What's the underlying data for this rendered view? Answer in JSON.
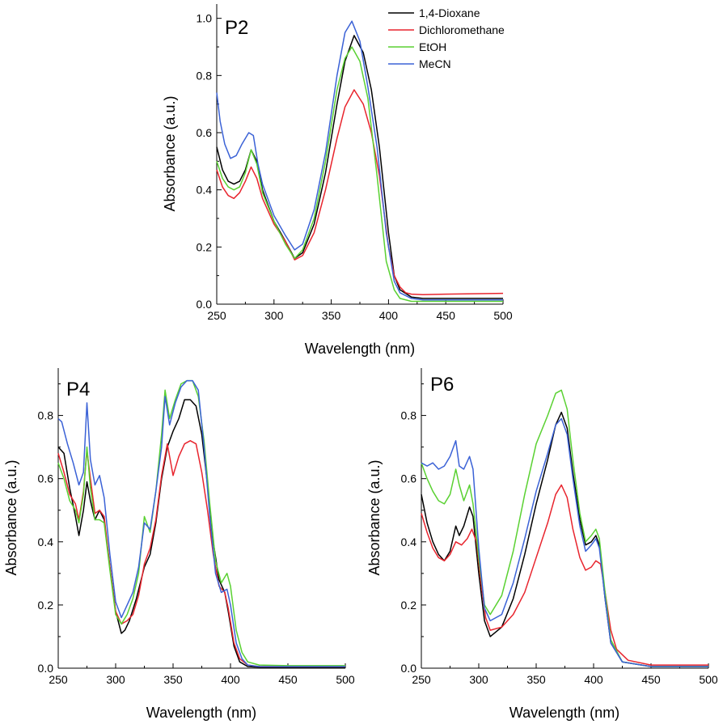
{
  "chart_data": [
    {
      "type": "line",
      "title": "P2",
      "xlabel": "Wavelength (nm)",
      "ylabel": "Absorbance (a.u.)",
      "xlim": [
        250,
        500
      ],
      "ylim": [
        0,
        1.05
      ],
      "xticks": [
        250,
        300,
        350,
        400,
        450,
        500
      ],
      "yticks": [
        0.0,
        0.2,
        0.4,
        0.6,
        0.8,
        1.0
      ],
      "xtick_labels": [
        "250",
        "300",
        "350",
        "400",
        "450",
        "500"
      ],
      "ytick_labels": [
        "0.0",
        "0.2",
        "0.4",
        "0.6",
        "0.8",
        "1.0"
      ],
      "legend": [
        "1,4-Dioxane",
        "Dichloromethane",
        "EtOH",
        "MeCN"
      ],
      "series": [
        {
          "name": "1,4-Dioxane",
          "color": "#000000",
          "x": [
            250,
            255,
            260,
            265,
            270,
            275,
            280,
            285,
            290,
            300,
            310,
            318,
            325,
            335,
            345,
            355,
            362,
            370,
            378,
            385,
            392,
            400,
            405,
            410,
            420,
            430,
            450,
            500
          ],
          "y": [
            0.55,
            0.47,
            0.43,
            0.42,
            0.43,
            0.47,
            0.54,
            0.5,
            0.4,
            0.29,
            0.22,
            0.16,
            0.18,
            0.28,
            0.46,
            0.7,
            0.85,
            0.94,
            0.88,
            0.75,
            0.55,
            0.25,
            0.1,
            0.05,
            0.025,
            0.02,
            0.02,
            0.02
          ]
        },
        {
          "name": "Dichloromethane",
          "color": "#e8242d",
          "x": [
            250,
            255,
            260,
            265,
            270,
            275,
            280,
            285,
            290,
            300,
            310,
            318,
            325,
            335,
            345,
            355,
            362,
            370,
            378,
            385,
            392,
            400,
            405,
            410,
            415,
            420,
            430,
            450,
            500
          ],
          "y": [
            0.47,
            0.41,
            0.38,
            0.37,
            0.39,
            0.43,
            0.48,
            0.44,
            0.37,
            0.28,
            0.22,
            0.155,
            0.17,
            0.25,
            0.4,
            0.58,
            0.69,
            0.75,
            0.7,
            0.6,
            0.45,
            0.2,
            0.1,
            0.06,
            0.04,
            0.035,
            0.033,
            0.035,
            0.038
          ]
        },
        {
          "name": "EtOH",
          "color": "#5ad132",
          "x": [
            250,
            255,
            260,
            265,
            270,
            275,
            280,
            285,
            290,
            300,
            310,
            318,
            325,
            335,
            345,
            355,
            362,
            368,
            375,
            382,
            390,
            398,
            405,
            410,
            420,
            430,
            450,
            500
          ],
          "y": [
            0.5,
            0.44,
            0.41,
            0.4,
            0.41,
            0.46,
            0.54,
            0.49,
            0.39,
            0.29,
            0.21,
            0.16,
            0.19,
            0.3,
            0.5,
            0.75,
            0.86,
            0.9,
            0.85,
            0.72,
            0.45,
            0.15,
            0.05,
            0.02,
            0.01,
            0.01,
            0.01,
            0.01
          ]
        },
        {
          "name": "MeCN",
          "color": "#3b62d6",
          "x": [
            250,
            253,
            257,
            262,
            267,
            272,
            278,
            282,
            286,
            290,
            300,
            310,
            318,
            325,
            335,
            345,
            355,
            362,
            368,
            375,
            382,
            390,
            398,
            405,
            410,
            420,
            430,
            450,
            500
          ],
          "y": [
            0.74,
            0.64,
            0.56,
            0.51,
            0.52,
            0.56,
            0.6,
            0.59,
            0.49,
            0.42,
            0.31,
            0.24,
            0.19,
            0.21,
            0.33,
            0.53,
            0.8,
            0.95,
            0.99,
            0.92,
            0.76,
            0.55,
            0.25,
            0.08,
            0.04,
            0.02,
            0.015,
            0.015,
            0.015
          ]
        }
      ]
    },
    {
      "type": "line",
      "title": "P4",
      "xlabel": "Wavelength (nm)",
      "ylabel": "Absorbance (a.u.)",
      "xlim": [
        250,
        500
      ],
      "ylim": [
        0,
        0.95
      ],
      "xticks": [
        250,
        300,
        350,
        400,
        450,
        500
      ],
      "yticks": [
        0.0,
        0.2,
        0.4,
        0.6,
        0.8
      ],
      "xtick_labels": [
        "250",
        "300",
        "350",
        "400",
        "450",
        "500"
      ],
      "ytick_labels": [
        "0.0",
        "0.2",
        "0.4",
        "0.6",
        "0.8"
      ],
      "series": [
        {
          "name": "1,4-Dioxane",
          "color": "#000000",
          "x": [
            250,
            255,
            260,
            265,
            268,
            272,
            275,
            278,
            282,
            286,
            290,
            295,
            300,
            305,
            308,
            312,
            318,
            325,
            330,
            335,
            340,
            345,
            350,
            355,
            360,
            365,
            370,
            375,
            380,
            385,
            390,
            395,
            398,
            403,
            408,
            415,
            425,
            450,
            500
          ],
          "y": [
            0.7,
            0.68,
            0.57,
            0.48,
            0.42,
            0.5,
            0.59,
            0.53,
            0.47,
            0.5,
            0.47,
            0.32,
            0.18,
            0.11,
            0.12,
            0.15,
            0.22,
            0.32,
            0.36,
            0.46,
            0.6,
            0.7,
            0.75,
            0.79,
            0.85,
            0.85,
            0.83,
            0.74,
            0.58,
            0.4,
            0.28,
            0.24,
            0.18,
            0.07,
            0.02,
            0.005,
            0.003,
            0.003,
            0.003
          ]
        },
        {
          "name": "Dichloromethane",
          "color": "#e8242d",
          "x": [
            250,
            255,
            260,
            265,
            268,
            272,
            275,
            278,
            282,
            286,
            290,
            295,
            300,
            305,
            310,
            315,
            320,
            325,
            330,
            335,
            340,
            345,
            350,
            355,
            360,
            365,
            370,
            375,
            380,
            385,
            390,
            395,
            398,
            403,
            408,
            415,
            425,
            450,
            500
          ],
          "y": [
            0.68,
            0.62,
            0.55,
            0.52,
            0.47,
            0.56,
            0.69,
            0.6,
            0.49,
            0.5,
            0.48,
            0.32,
            0.18,
            0.14,
            0.15,
            0.17,
            0.23,
            0.33,
            0.38,
            0.47,
            0.61,
            0.71,
            0.61,
            0.67,
            0.71,
            0.72,
            0.71,
            0.62,
            0.5,
            0.36,
            0.26,
            0.24,
            0.19,
            0.08,
            0.03,
            0.01,
            0.005,
            0.005,
            0.005
          ]
        },
        {
          "name": "EtOH",
          "color": "#5ad132",
          "x": [
            250,
            255,
            260,
            265,
            268,
            272,
            275,
            278,
            282,
            286,
            290,
            295,
            300,
            305,
            310,
            315,
            320,
            325,
            330,
            335,
            340,
            343,
            347,
            352,
            357,
            362,
            367,
            372,
            377,
            382,
            387,
            392,
            397,
            400,
            405,
            410,
            415,
            425,
            450,
            500
          ],
          "y": [
            0.65,
            0.6,
            0.53,
            0.5,
            0.46,
            0.55,
            0.7,
            0.57,
            0.47,
            0.47,
            0.46,
            0.31,
            0.17,
            0.14,
            0.17,
            0.22,
            0.3,
            0.48,
            0.43,
            0.56,
            0.74,
            0.88,
            0.79,
            0.85,
            0.9,
            0.91,
            0.91,
            0.86,
            0.72,
            0.52,
            0.34,
            0.27,
            0.3,
            0.26,
            0.12,
            0.05,
            0.02,
            0.01,
            0.008,
            0.008
          ]
        },
        {
          "name": "MeCN",
          "color": "#3b62d6",
          "x": [
            250,
            253,
            258,
            263,
            268,
            272,
            275,
            278,
            282,
            286,
            290,
            295,
            300,
            305,
            310,
            315,
            320,
            325,
            330,
            335,
            340,
            343,
            347,
            352,
            357,
            362,
            367,
            372,
            377,
            382,
            387,
            392,
            397,
            400,
            405,
            410,
            415,
            425,
            450,
            500
          ],
          "y": [
            0.79,
            0.78,
            0.71,
            0.65,
            0.58,
            0.62,
            0.84,
            0.66,
            0.58,
            0.61,
            0.54,
            0.36,
            0.21,
            0.16,
            0.2,
            0.24,
            0.32,
            0.46,
            0.44,
            0.56,
            0.7,
            0.86,
            0.77,
            0.84,
            0.89,
            0.91,
            0.91,
            0.88,
            0.7,
            0.48,
            0.3,
            0.24,
            0.25,
            0.2,
            0.08,
            0.03,
            0.01,
            0.005,
            0.005,
            0.005
          ]
        }
      ]
    },
    {
      "type": "line",
      "title": "P6",
      "xlabel": "Wavelength (nm)",
      "ylabel": "Absorbance (a.u.)",
      "xlim": [
        250,
        500
      ],
      "ylim": [
        0,
        0.95
      ],
      "xticks": [
        250,
        300,
        350,
        400,
        450,
        500
      ],
      "yticks": [
        0.0,
        0.2,
        0.4,
        0.6,
        0.8
      ],
      "xtick_labels": [
        "250",
        "300",
        "350",
        "400",
        "450",
        "500"
      ],
      "ytick_labels": [
        "0.0",
        "0.2",
        "0.4",
        "0.6",
        "0.8"
      ],
      "series": [
        {
          "name": "1,4-Dioxane",
          "color": "#000000",
          "x": [
            250,
            255,
            260,
            265,
            270,
            275,
            280,
            283,
            287,
            292,
            295,
            300,
            305,
            310,
            320,
            330,
            340,
            350,
            360,
            367,
            372,
            377,
            382,
            388,
            393,
            398,
            402,
            405,
            410,
            415,
            425,
            450,
            500
          ],
          "y": [
            0.55,
            0.46,
            0.4,
            0.36,
            0.34,
            0.37,
            0.45,
            0.42,
            0.45,
            0.51,
            0.48,
            0.3,
            0.15,
            0.1,
            0.13,
            0.22,
            0.36,
            0.52,
            0.66,
            0.77,
            0.81,
            0.76,
            0.62,
            0.47,
            0.39,
            0.4,
            0.42,
            0.39,
            0.22,
            0.08,
            0.02,
            0.005,
            0.005
          ]
        },
        {
          "name": "Dichloromethane",
          "color": "#e8242d",
          "x": [
            250,
            255,
            260,
            265,
            270,
            275,
            280,
            285,
            290,
            294,
            298,
            302,
            306,
            310,
            320,
            330,
            340,
            350,
            360,
            367,
            372,
            377,
            382,
            388,
            393,
            398,
            402,
            406,
            410,
            415,
            420,
            430,
            450,
            500
          ],
          "y": [
            0.49,
            0.43,
            0.38,
            0.35,
            0.34,
            0.36,
            0.4,
            0.39,
            0.41,
            0.44,
            0.4,
            0.27,
            0.16,
            0.12,
            0.13,
            0.17,
            0.24,
            0.35,
            0.46,
            0.55,
            0.58,
            0.54,
            0.44,
            0.35,
            0.31,
            0.32,
            0.34,
            0.33,
            0.24,
            0.12,
            0.06,
            0.025,
            0.01,
            0.01
          ]
        },
        {
          "name": "EtOH",
          "color": "#5ad132",
          "x": [
            250,
            255,
            260,
            265,
            270,
            275,
            280,
            283,
            287,
            292,
            295,
            300,
            305,
            310,
            320,
            330,
            340,
            350,
            360,
            367,
            372,
            377,
            382,
            388,
            393,
            398,
            402,
            405,
            410,
            415,
            425,
            450,
            500
          ],
          "y": [
            0.65,
            0.6,
            0.56,
            0.53,
            0.52,
            0.55,
            0.63,
            0.58,
            0.53,
            0.58,
            0.52,
            0.35,
            0.2,
            0.17,
            0.23,
            0.37,
            0.55,
            0.71,
            0.8,
            0.87,
            0.88,
            0.82,
            0.66,
            0.49,
            0.4,
            0.42,
            0.44,
            0.41,
            0.24,
            0.09,
            0.02,
            0.005,
            0.005
          ]
        },
        {
          "name": "MeCN",
          "color": "#3b62d6",
          "x": [
            250,
            255,
            260,
            265,
            270,
            275,
            280,
            283,
            287,
            292,
            295,
            300,
            305,
            310,
            320,
            330,
            340,
            350,
            360,
            367,
            372,
            377,
            382,
            388,
            393,
            398,
            402,
            405,
            410,
            415,
            425,
            450,
            500
          ],
          "y": [
            0.65,
            0.64,
            0.65,
            0.63,
            0.64,
            0.67,
            0.72,
            0.64,
            0.63,
            0.67,
            0.63,
            0.38,
            0.19,
            0.15,
            0.17,
            0.27,
            0.41,
            0.56,
            0.68,
            0.77,
            0.79,
            0.74,
            0.6,
            0.45,
            0.37,
            0.39,
            0.41,
            0.38,
            0.22,
            0.08,
            0.02,
            0.005,
            0.005
          ]
        }
      ]
    }
  ]
}
